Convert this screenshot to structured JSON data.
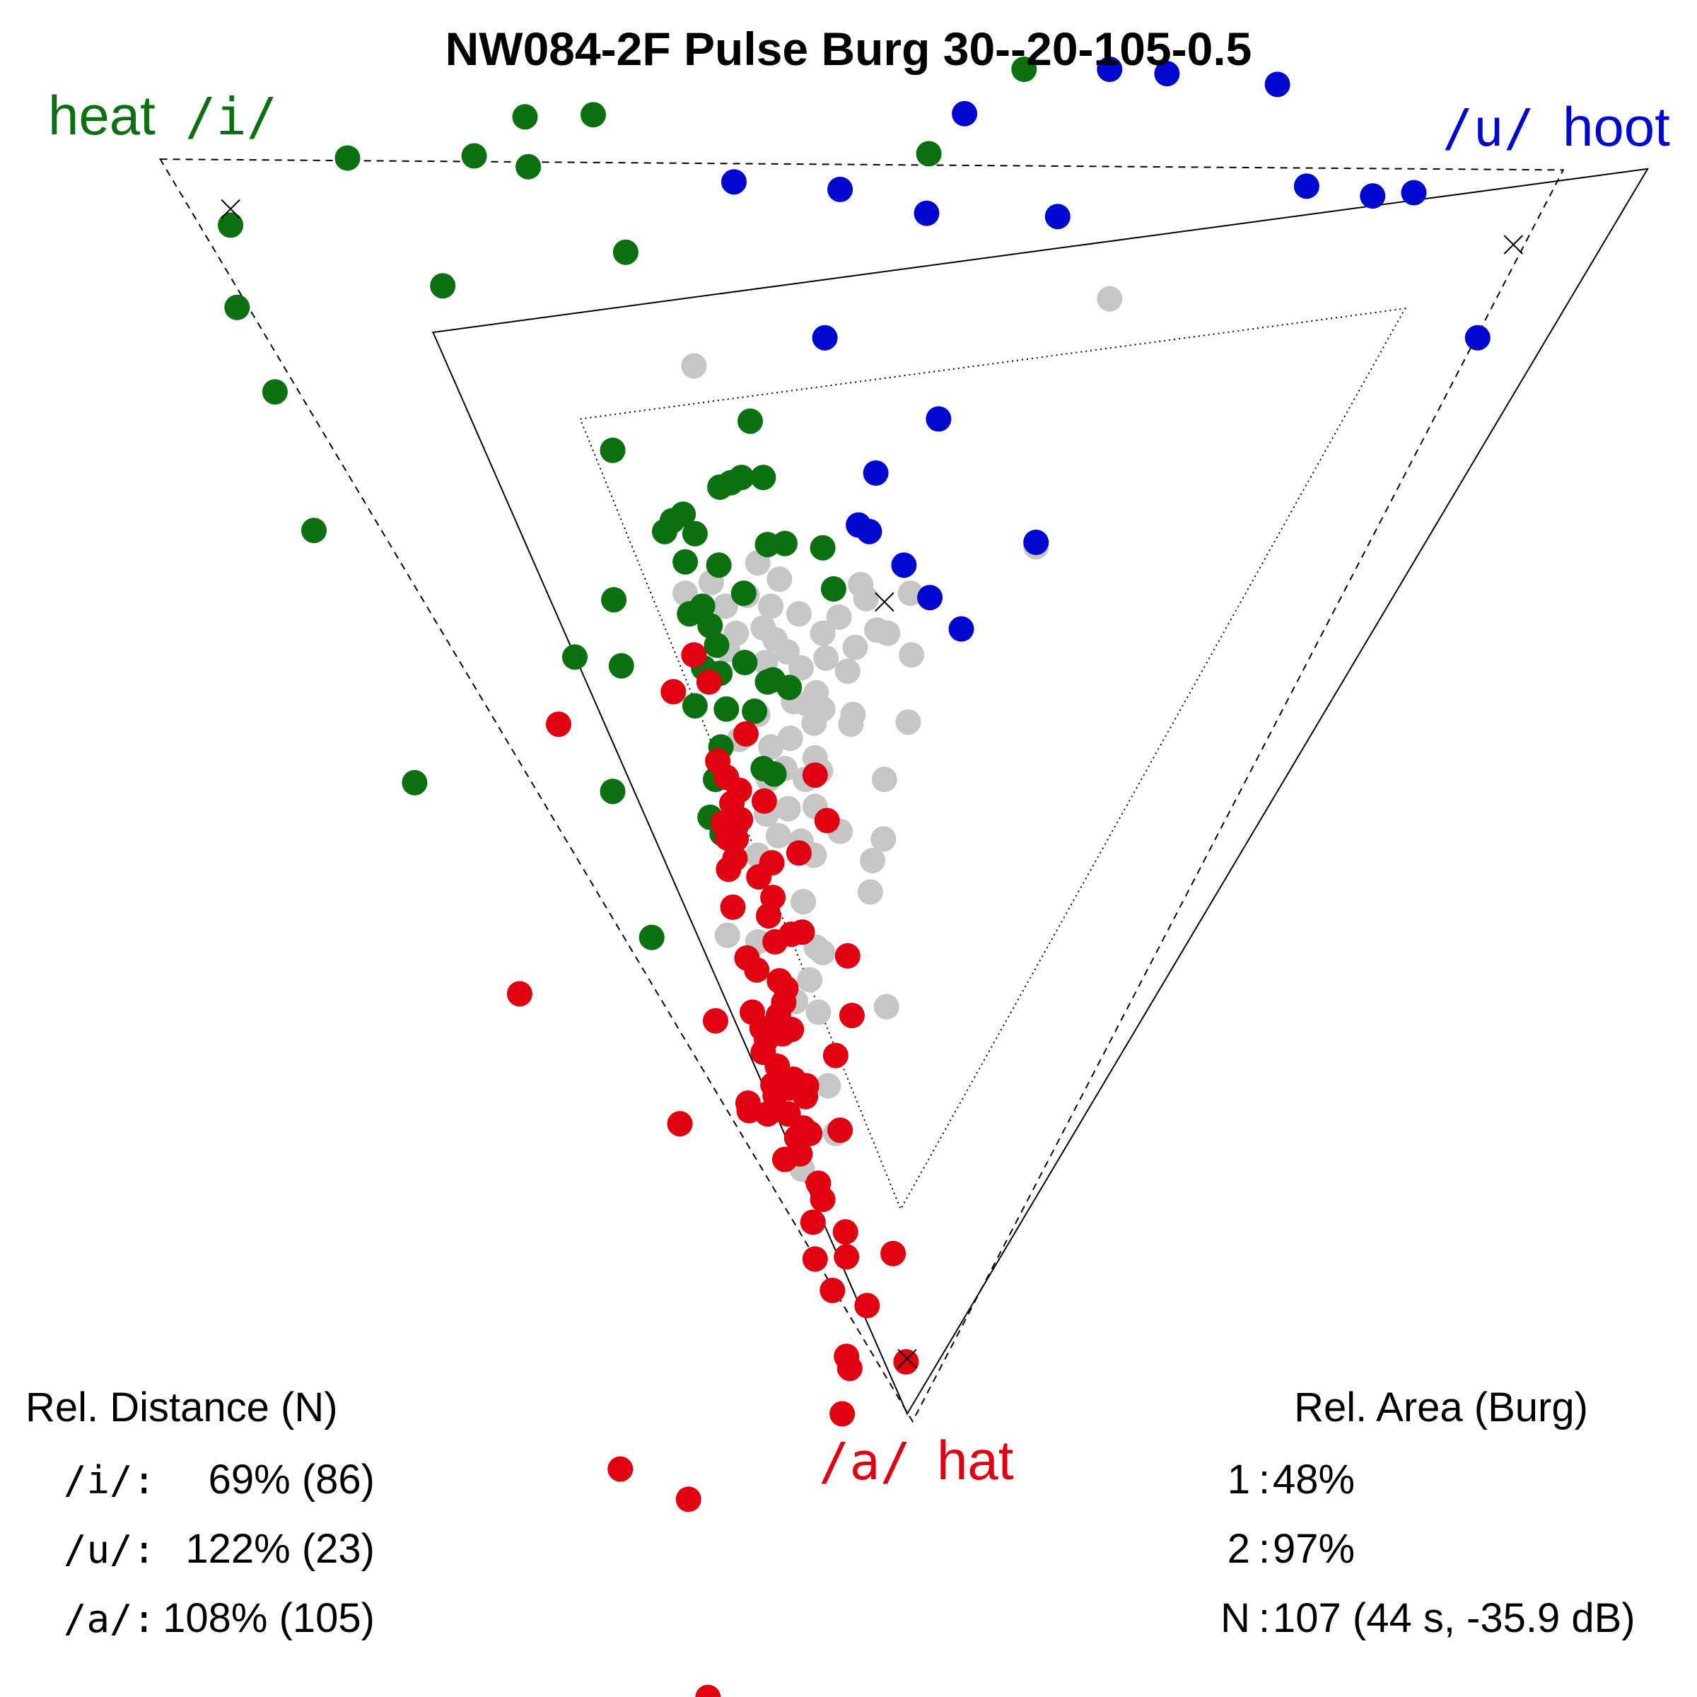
{
  "chart_data": {
    "type": "scatter",
    "title": "NW084-2F Pulse Burg 30--20-105-0.5",
    "vowels": [
      {
        "key": "i",
        "ipa": "/i/",
        "word": "heat",
        "color": "#0a7010"
      },
      {
        "key": "u",
        "ipa": "/u/",
        "word": "hoot",
        "color": "#0008d0"
      },
      {
        "key": "a",
        "ipa": "/a/",
        "word": "hat",
        "color": "#e00010"
      }
    ],
    "series": [
      {
        "name": "/i/",
        "color": "#0a7010",
        "points": [
          [
            213,
            208
          ],
          [
            219,
            284
          ],
          [
            254,
            362
          ],
          [
            290,
            490
          ],
          [
            321,
            146
          ],
          [
            383,
            723
          ],
          [
            409,
            264
          ],
          [
            438,
            144
          ],
          [
            485,
            108
          ],
          [
            488,
            154
          ],
          [
            531,
            607
          ],
          [
            548,
            106
          ],
          [
            566,
            416
          ],
          [
            566,
            731
          ],
          [
            567,
            554
          ],
          [
            574,
            615
          ],
          [
            578,
            233
          ],
          [
            602,
            866
          ],
          [
            614,
            491
          ],
          [
            621,
            481
          ],
          [
            631,
            475
          ],
          [
            633,
            519
          ],
          [
            642,
            493
          ],
          [
            637,
            567
          ],
          [
            649,
            560
          ],
          [
            656,
            578
          ],
          [
            662,
            596
          ],
          [
            665,
            450
          ],
          [
            664,
            522
          ],
          [
            675,
            446
          ],
          [
            685,
            441
          ],
          [
            687,
            548
          ],
          [
            693,
            389
          ],
          [
            705,
            441
          ],
          [
            709,
            503
          ],
          [
            714,
            628
          ],
          [
            725,
            502
          ],
          [
            729,
            635
          ],
          [
            760,
            506
          ],
          [
            770,
            544
          ],
          [
            858,
            142
          ],
          [
            946,
            64
          ],
          [
            642,
            652
          ],
          [
            650,
            617
          ],
          [
            665,
            622
          ],
          [
            688,
            612
          ],
          [
            697,
            657
          ],
          [
            709,
            630
          ],
          [
            671,
            655
          ],
          [
            666,
            690
          ],
          [
            661,
            720
          ],
          [
            656,
            755
          ],
          [
            667,
            770
          ],
          [
            715,
            715
          ],
          [
            705,
            710
          ]
        ]
      },
      {
        "name": "/u/",
        "color": "#0008d0",
        "points": [
          [
            678,
            168
          ],
          [
            762,
            312
          ],
          [
            776,
            175
          ],
          [
            793,
            485
          ],
          [
            803,
            491
          ],
          [
            809,
            437
          ],
          [
            835,
            522
          ],
          [
            856,
            197
          ],
          [
            859,
            552
          ],
          [
            867,
            387
          ],
          [
            888,
            581
          ],
          [
            891,
            105
          ],
          [
            957,
            501
          ],
          [
            977,
            200
          ],
          [
            1025,
            64
          ],
          [
            1078,
            68
          ],
          [
            1180,
            78
          ],
          [
            1207,
            172
          ],
          [
            1268,
            181
          ],
          [
            1306,
            178
          ],
          [
            1365,
            312
          ]
        ]
      },
      {
        "name": "/a/",
        "color": "#e00010",
        "points": [
          [
            480,
            918
          ],
          [
            516,
            669
          ],
          [
            573,
            1357
          ],
          [
            622,
            639
          ],
          [
            628,
            1038
          ],
          [
            636,
            1385
          ],
          [
            641,
            605
          ],
          [
            654,
            1568
          ],
          [
            661,
            943
          ],
          [
            663,
            703
          ],
          [
            671,
            718
          ],
          [
            673,
            803
          ],
          [
            677,
            838
          ],
          [
            683,
            730
          ],
          [
            680,
            775
          ],
          [
            689,
            678
          ],
          [
            690,
            885
          ],
          [
            691,
            1019
          ],
          [
            695,
            935
          ],
          [
            701,
            810
          ],
          [
            706,
            740
          ],
          [
            708,
            960
          ],
          [
            713,
            797
          ],
          [
            714,
            829
          ],
          [
            716,
            1012
          ],
          [
            718,
            985
          ],
          [
            720,
            906
          ],
          [
            724,
            926
          ],
          [
            725,
            1071
          ],
          [
            731,
            951
          ],
          [
            736,
            1001
          ],
          [
            738,
            788
          ],
          [
            741,
            861
          ],
          [
            748,
            1047
          ],
          [
            751,
            1129
          ],
          [
            753,
            716
          ],
          [
            753,
            1163
          ],
          [
            756,
            1093
          ],
          [
            760,
            1108
          ],
          [
            764,
            758
          ],
          [
            769,
            1192
          ],
          [
            772,
            975
          ],
          [
            776,
            1044
          ],
          [
            778,
            1306
          ],
          [
            781,
            1138
          ],
          [
            782,
            1253
          ],
          [
            782,
            1161
          ],
          [
            783,
            883
          ],
          [
            785,
            1264
          ],
          [
            787,
            938
          ],
          [
            801,
            1206
          ],
          [
            825,
            1158
          ],
          [
            837,
            1258
          ],
          [
            655,
            630
          ],
          [
            668,
            760
          ],
          [
            699,
            896
          ],
          [
            704,
            950
          ],
          [
            728,
            1029
          ],
          [
            731,
            863
          ],
          [
            736,
            1051
          ],
          [
            742,
            1042
          ],
          [
            744,
            1013
          ],
          [
            733,
            997
          ],
          [
            723,
            955
          ],
          [
            714,
            1002
          ],
          [
            705,
            972
          ],
          [
            716,
            870
          ],
          [
            726,
            913
          ],
          [
            719,
            938
          ],
          [
            729,
            1005
          ],
          [
            745,
            1003
          ],
          [
            709,
            1029
          ],
          [
            692,
            1026
          ],
          [
            739,
            1066
          ],
          [
            710,
            846
          ],
          [
            679,
            793
          ],
          [
            684,
            757
          ],
          [
            672,
            774
          ],
          [
            676,
            742
          ]
        ]
      },
      {
        "name": "other",
        "color": "#c6c6c6",
        "points": [
          [
            641,
            338
          ],
          [
            1025,
            276
          ],
          [
            957,
            505
          ],
          [
            633,
            548
          ],
          [
            700,
            520
          ],
          [
            720,
            535
          ],
          [
            712,
            560
          ],
          [
            705,
            580
          ],
          [
            738,
            567
          ],
          [
            760,
            585
          ],
          [
            775,
            570
          ],
          [
            800,
            553
          ],
          [
            820,
            585
          ],
          [
            842,
            605
          ],
          [
            790,
            598
          ],
          [
            763,
            608
          ],
          [
            740,
            617
          ],
          [
            716,
            591
          ],
          [
            680,
            585
          ],
          [
            670,
            560
          ],
          [
            690,
            550
          ],
          [
            657,
            538
          ],
          [
            672,
            600
          ],
          [
            707,
            612
          ],
          [
            727,
            602
          ],
          [
            754,
            640
          ],
          [
            783,
            620
          ],
          [
            788,
            660
          ],
          [
            752,
            668
          ],
          [
            730,
            682
          ],
          [
            712,
            690
          ],
          [
            700,
            660
          ],
          [
            683,
            683
          ],
          [
            753,
            700
          ],
          [
            744,
            720
          ],
          [
            728,
            747
          ],
          [
            719,
            772
          ],
          [
            700,
            790
          ],
          [
            708,
            752
          ],
          [
            740,
            777
          ],
          [
            752,
            790
          ],
          [
            776,
            768
          ],
          [
            806,
            795
          ],
          [
            816,
            775
          ],
          [
            817,
            720
          ],
          [
            839,
            667
          ],
          [
            786,
            669
          ],
          [
            753,
            745
          ],
          [
            758,
            712
          ],
          [
            742,
            833
          ],
          [
            804,
            824
          ],
          [
            760,
            880
          ],
          [
            748,
            905
          ],
          [
            735,
            925
          ],
          [
            756,
            935
          ],
          [
            819,
            930
          ],
          [
            765,
            1003
          ],
          [
            672,
            864
          ],
          [
            700,
            870
          ],
          [
            754,
            875
          ],
          [
            772,
            1047
          ],
          [
            741,
            1080
          ],
          [
            841,
            548
          ],
          [
            810,
            582
          ],
          [
            795,
            540
          ],
          [
            733,
            648
          ],
          [
            760,
            655
          ],
          [
            725,
            710
          ],
          [
            745,
            650
          ],
          [
            710,
            720
          ]
        ]
      }
    ],
    "markers": [
      [
        213,
        193
      ],
      [
        817,
        556
      ],
      [
        838,
        1255
      ],
      [
        1398,
        226
      ]
    ],
    "triangles": {
      "solid": [
        [
          400,
          307
        ],
        [
          1522,
          156
        ],
        [
          838,
          1306
        ]
      ],
      "dashed": [
        [
          148,
          147
        ],
        [
          1444,
          157
        ],
        [
          843,
          1313
        ]
      ],
      "dotted": [
        [
          536,
          387
        ],
        [
          1298,
          285
        ],
        [
          832,
          1117
        ]
      ]
    }
  },
  "labels": {
    "heat": {
      "word": "heat",
      "ipa": "/i/"
    },
    "hoot": {
      "word": "hoot",
      "ipa": "/u/"
    },
    "hat": {
      "word": "hat",
      "ipa": "/a/"
    }
  },
  "stats_left": {
    "heading": "Rel. Distance (N)",
    "rows": [
      {
        "ipa": "/i/:",
        "value": "69% (86)"
      },
      {
        "ipa": "/u/:",
        "value": "122% (23)"
      },
      {
        "ipa": "/a/:",
        "value": "108% (105)"
      }
    ]
  },
  "stats_right": {
    "heading": "Rel. Area (Burg)",
    "rows": [
      {
        "key": "1",
        "value": "48%"
      },
      {
        "key": "2",
        "value": "97%"
      },
      {
        "key": "N",
        "value": "107 (44 s, -35.9 dB)"
      }
    ]
  }
}
